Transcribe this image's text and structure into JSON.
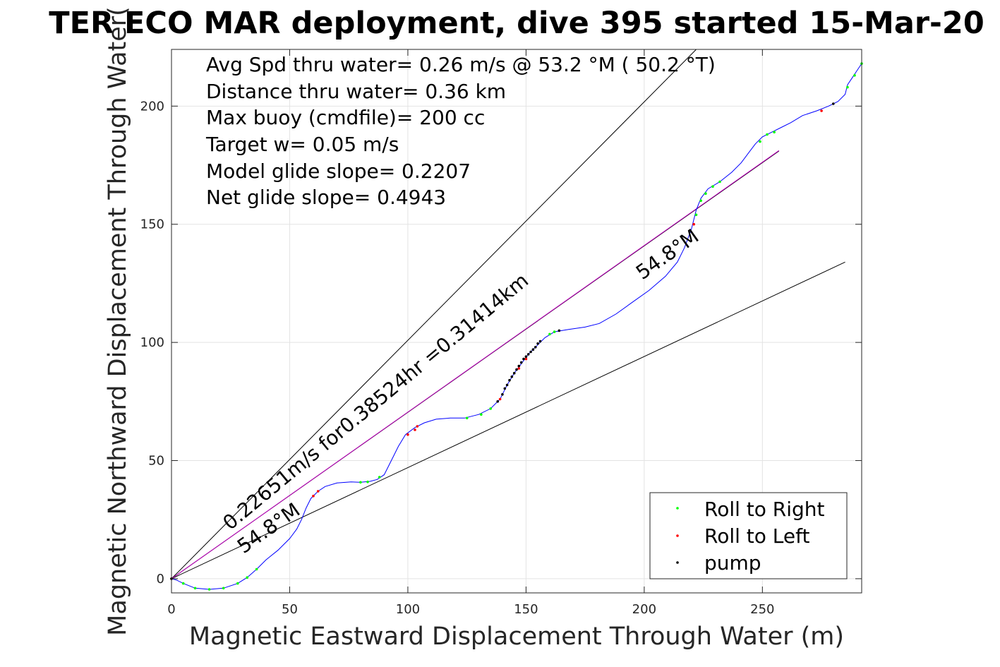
{
  "chart_data": {
    "type": "scatter",
    "title": "TER ECO MAR deployment, dive 395 started 15-Mar-20",
    "xlabel": "Magnetic Eastward Displacement Through Water (m)",
    "ylabel": "Magnetic Northward Displacement Through Water(",
    "xlim": [
      0,
      292
    ],
    "ylim": [
      -6,
      224
    ],
    "xticks": [
      "0",
      "50",
      "100",
      "150",
      "200",
      "250"
    ],
    "yticks": [
      "0",
      "50",
      "100",
      "150",
      "200"
    ],
    "grid": true,
    "legend_position": "bottom-right",
    "info_lines": [
      "Avg Spd thru water=  0.26 m/s @  53.2 °M ( 50.2 °T)",
      "Distance thru water=  0.36 km",
      "Max buoy (cmdfile)= 200 cc",
      "Target w= 0.05 m/s",
      "Model glide slope= 0.2207",
      "Net glide slope= 0.4943"
    ],
    "annotations": {
      "speed_label": "0.22651m/s for0.38524hr =0.31414km",
      "heading_upper": "54.8°M",
      "heading_lower": "54.8°M"
    },
    "legend": [
      {
        "label": "Roll to Right",
        "color": "#00ff00"
      },
      {
        "label": "Roll to Left",
        "color": "#ff0000"
      },
      {
        "label": "pump",
        "color": "#000000"
      }
    ],
    "track": [
      [
        0,
        0
      ],
      [
        2,
        -0.5
      ],
      [
        5,
        -2
      ],
      [
        10,
        -4
      ],
      [
        16,
        -4.5
      ],
      [
        22,
        -4
      ],
      [
        28,
        -2
      ],
      [
        32,
        0.5
      ],
      [
        36,
        4
      ],
      [
        40,
        8
      ],
      [
        45,
        12
      ],
      [
        50,
        17
      ],
      [
        53,
        21
      ],
      [
        55,
        25
      ],
      [
        57,
        30
      ],
      [
        59,
        34
      ],
      [
        62,
        37
      ],
      [
        65,
        39
      ],
      [
        70,
        40.5
      ],
      [
        76,
        41
      ],
      [
        80,
        40.8
      ],
      [
        84,
        41.2
      ],
      [
        87,
        42
      ],
      [
        90,
        44
      ],
      [
        93,
        50
      ],
      [
        96,
        56
      ],
      [
        99,
        61
      ],
      [
        103,
        64
      ],
      [
        107,
        66
      ],
      [
        112,
        67.5
      ],
      [
        118,
        68
      ],
      [
        124,
        68
      ],
      [
        130,
        69.5
      ],
      [
        135,
        72
      ],
      [
        139,
        76
      ],
      [
        142,
        82
      ],
      [
        145,
        87
      ],
      [
        148,
        91
      ],
      [
        151,
        95
      ],
      [
        154,
        98
      ],
      [
        158,
        102
      ],
      [
        162,
        104.5
      ],
      [
        168,
        105.5
      ],
      [
        175,
        106.5
      ],
      [
        181,
        108
      ],
      [
        188,
        112
      ],
      [
        195,
        117
      ],
      [
        202,
        122
      ],
      [
        209,
        128
      ],
      [
        214,
        134
      ],
      [
        217,
        140
      ],
      [
        220,
        148
      ],
      [
        222,
        156
      ],
      [
        224,
        161
      ],
      [
        227,
        165
      ],
      [
        232,
        168
      ],
      [
        237,
        172
      ],
      [
        241,
        176
      ],
      [
        244,
        180
      ],
      [
        247,
        184
      ],
      [
        250,
        187
      ],
      [
        254,
        189
      ],
      [
        258,
        191
      ],
      [
        262,
        193
      ],
      [
        267,
        196
      ],
      [
        273,
        198
      ],
      [
        278,
        200
      ],
      [
        282,
        202
      ],
      [
        285,
        205
      ],
      [
        286,
        209
      ],
      [
        288,
        212
      ],
      [
        290,
        215
      ],
      [
        292,
        218
      ]
    ],
    "roll_right": [
      [
        0,
        0
      ],
      [
        5,
        -2
      ],
      [
        10,
        -4
      ],
      [
        16,
        -4.5
      ],
      [
        22,
        -4
      ],
      [
        28,
        -2
      ],
      [
        32,
        0.5
      ],
      [
        36,
        4
      ],
      [
        80,
        40.8
      ],
      [
        83,
        41
      ],
      [
        88,
        43
      ],
      [
        125,
        68
      ],
      [
        131,
        69.5
      ],
      [
        135,
        72
      ],
      [
        160,
        103.5
      ],
      [
        162,
        104.5
      ],
      [
        222,
        154
      ],
      [
        224,
        160
      ],
      [
        226,
        163
      ],
      [
        229,
        166
      ],
      [
        232,
        168
      ],
      [
        249,
        185
      ],
      [
        252,
        188
      ],
      [
        255,
        189
      ],
      [
        286,
        208
      ],
      [
        289,
        213
      ],
      [
        292,
        218
      ]
    ],
    "roll_left": [
      [
        0,
        0
      ],
      [
        60,
        35
      ],
      [
        62,
        37
      ],
      [
        100,
        61
      ],
      [
        103,
        63
      ],
      [
        104,
        64.5
      ],
      [
        139,
        76
      ],
      [
        147,
        89
      ],
      [
        150,
        93
      ],
      [
        221,
        150
      ],
      [
        275,
        198
      ]
    ],
    "pump": [
      [
        0,
        0
      ],
      [
        138,
        75
      ],
      [
        140,
        78
      ],
      [
        141,
        80.5
      ],
      [
        142,
        82
      ],
      [
        143,
        84
      ],
      [
        144,
        85.5
      ],
      [
        145,
        87
      ],
      [
        146,
        88.5
      ],
      [
        147,
        90
      ],
      [
        148,
        91.5
      ],
      [
        149,
        93
      ],
      [
        150,
        94
      ],
      [
        151,
        95
      ],
      [
        152,
        96
      ],
      [
        153,
        97
      ],
      [
        154,
        98
      ],
      [
        155,
        99.5
      ],
      [
        156,
        100.5
      ],
      [
        164,
        105
      ],
      [
        280,
        201
      ]
    ],
    "guide_lines": [
      {
        "name": "upper-bound",
        "x": [
          0,
          222
        ],
        "y": [
          0,
          224
        ],
        "color": "#000000"
      },
      {
        "name": "center-heading",
        "x": [
          0,
          257
        ],
        "y": [
          0,
          181
        ],
        "color": "#000000"
      },
      {
        "name": "lower-bound",
        "x": [
          0,
          285
        ],
        "y": [
          0,
          134
        ],
        "color": "#000000"
      },
      {
        "name": "glide-vector",
        "x": [
          0,
          257
        ],
        "y": [
          0,
          181.2
        ],
        "color": "#c000c0"
      }
    ]
  }
}
